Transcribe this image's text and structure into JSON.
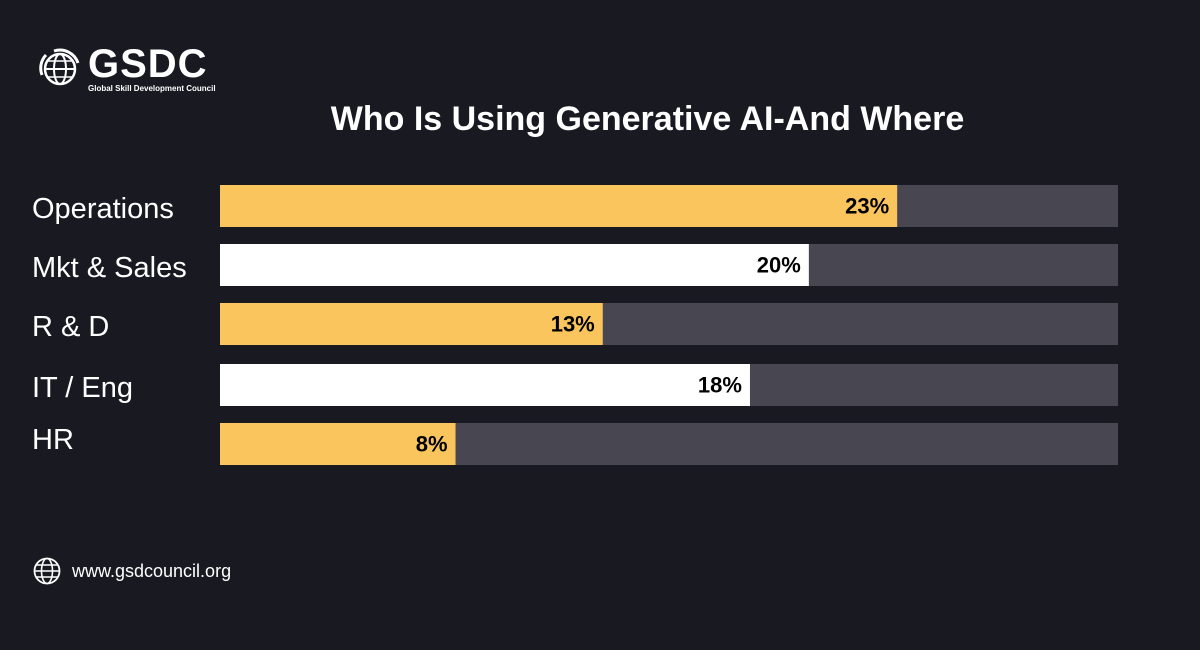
{
  "brand": {
    "name": "GSDC",
    "tagline": "Global Skill Development Council"
  },
  "colors": {
    "background": "#191922",
    "track": "#484650",
    "accent_yellow": "#F9C55C",
    "accent_white": "#FFFFFF",
    "label_text": "#000000"
  },
  "chart_data": {
    "type": "bar",
    "orientation": "horizontal",
    "title": "Who Is Using Generative AI-And Where",
    "categories": [
      "Operations",
      "Mkt & Sales",
      "R & D",
      "IT / Eng",
      "HR"
    ],
    "values": [
      23,
      20,
      13,
      18,
      8
    ],
    "value_labels": [
      "23%",
      "20%",
      "13%",
      "18%",
      "8%"
    ],
    "bar_colors": [
      "#F9C55C",
      "#FFFFFF",
      "#F9C55C",
      "#FFFFFF",
      "#F9C55C"
    ],
    "xlim": [
      0,
      30.5
    ],
    "grid": false,
    "legend": "none"
  },
  "footer": {
    "url": "www.gsdcouncil.org",
    "icon": "globe-icon"
  }
}
